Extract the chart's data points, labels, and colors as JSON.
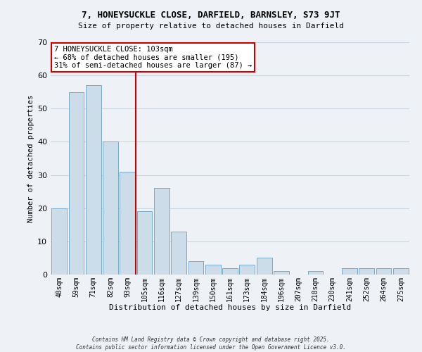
{
  "title": "7, HONEYSUCKLE CLOSE, DARFIELD, BARNSLEY, S73 9JT",
  "subtitle": "Size of property relative to detached houses in Darfield",
  "xlabel": "Distribution of detached houses by size in Darfield",
  "ylabel": "Number of detached properties",
  "bar_labels": [
    "48sqm",
    "59sqm",
    "71sqm",
    "82sqm",
    "93sqm",
    "105sqm",
    "116sqm",
    "127sqm",
    "139sqm",
    "150sqm",
    "161sqm",
    "173sqm",
    "184sqm",
    "196sqm",
    "207sqm",
    "218sqm",
    "230sqm",
    "241sqm",
    "252sqm",
    "264sqm",
    "275sqm"
  ],
  "bar_values": [
    20,
    55,
    57,
    40,
    31,
    19,
    26,
    13,
    4,
    3,
    2,
    3,
    5,
    1,
    0,
    1,
    0,
    2,
    2,
    2,
    2
  ],
  "bar_color": "#ccdce8",
  "bar_edge_color": "#7aaac8",
  "vline_color": "#cc0000",
  "annotation_title": "7 HONEYSUCKLE CLOSE: 103sqm",
  "annotation_line1": "← 68% of detached houses are smaller (195)",
  "annotation_line2": "31% of semi-detached houses are larger (87) →",
  "annotation_box_edgecolor": "#cc0000",
  "background_color": "#eef2f7",
  "footer1": "Contains HM Land Registry data © Crown copyright and database right 2025.",
  "footer2": "Contains public sector information licensed under the Open Government Licence v3.0.",
  "ylim": [
    0,
    70
  ],
  "yticks": [
    0,
    10,
    20,
    30,
    40,
    50,
    60,
    70
  ],
  "grid_color": "#c8d4e0",
  "vline_bar_index": 5
}
